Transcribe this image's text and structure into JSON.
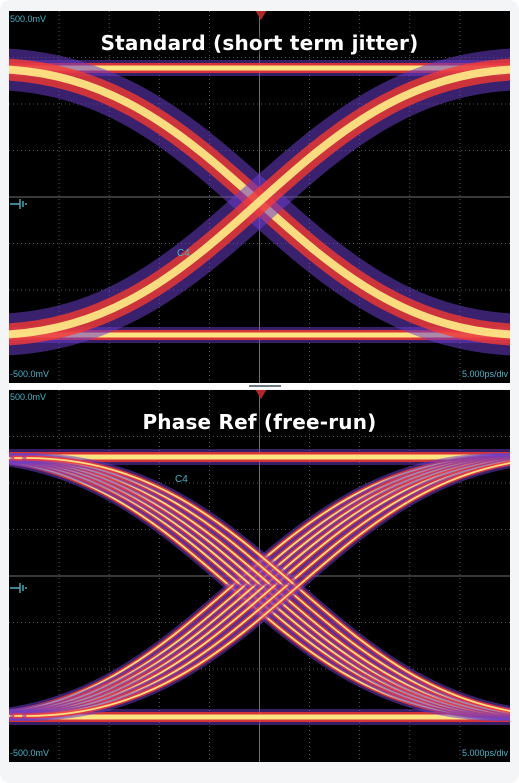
{
  "panels": [
    {
      "title": "Standard (short term jitter)",
      "volt_top": "500.0mV",
      "volt_bottom": "-500.0mV",
      "timebase": "5.000ps/div",
      "channel": "C4"
    },
    {
      "title": "Phase Ref (free-run)",
      "volt_top": "500.0mV",
      "volt_bottom": "-500.0mV",
      "timebase": "5.000ps/div",
      "channel": "C4"
    }
  ],
  "colors": {
    "background": "#000000",
    "grid": "#6f6f6f",
    "label": "#48b4c8",
    "trigger_marker": "#b0282a",
    "trace_hot": "#ffee88",
    "trace_mid": "#ff3a2a",
    "trace_cool": "#6a3cc8"
  },
  "icons": {
    "trigger": "trigger-marker-icon",
    "ground": "ground-icon"
  }
}
